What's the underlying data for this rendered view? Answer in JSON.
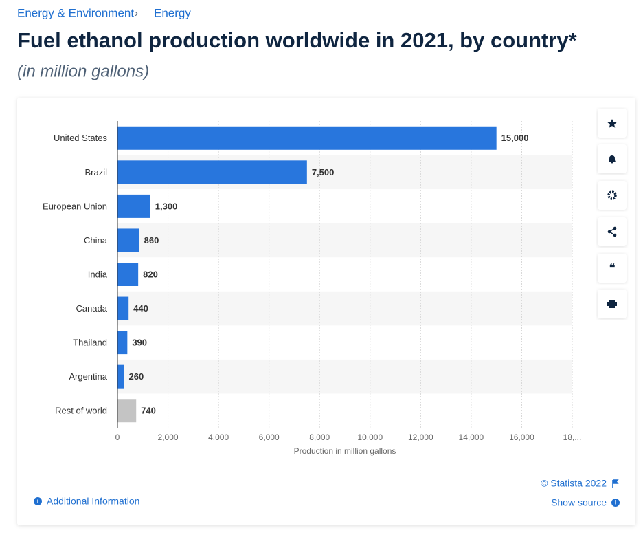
{
  "breadcrumb": [
    "Energy & Environment",
    "Energy"
  ],
  "chart_data": {
    "type": "bar",
    "orientation": "horizontal",
    "title": "Fuel ethanol production worldwide in 2021, by country*",
    "subtitle": "(in million gallons)",
    "xlabel": "Production in million gallons",
    "categories": [
      "United States",
      "Brazil",
      "European Union",
      "China",
      "India",
      "Canada",
      "Thailand",
      "Argentina",
      "Rest of world"
    ],
    "values": [
      15000,
      7500,
      1300,
      860,
      820,
      440,
      390,
      260,
      740
    ],
    "value_labels": [
      "15,000",
      "7,500",
      "1,300",
      "860",
      "820",
      "440",
      "390",
      "260",
      "740"
    ],
    "colors": [
      "#2876dd",
      "#2876dd",
      "#2876dd",
      "#2876dd",
      "#2876dd",
      "#2876dd",
      "#2876dd",
      "#2876dd",
      "#c4c4c4"
    ],
    "xlim": [
      0,
      18000
    ],
    "xticks": [
      0,
      {
        "value": 2000,
        "label": "2,000"
      },
      {
        "value": 4000,
        "label": "4,000"
      },
      {
        "value": 6000,
        "label": "6,000"
      },
      {
        "value": 8000,
        "label": "8,000"
      },
      {
        "value": 10000,
        "label": "10,000"
      },
      {
        "value": 12000,
        "label": "12,000"
      },
      {
        "value": 14000,
        "label": "14,000"
      },
      {
        "value": 16000,
        "label": "16,000"
      },
      {
        "value": 18000,
        "label": "18,..."
      }
    ],
    "grid": true
  },
  "footer": {
    "copyright": "© Statista 2022",
    "source": "Show source",
    "info": "Additional Information"
  }
}
